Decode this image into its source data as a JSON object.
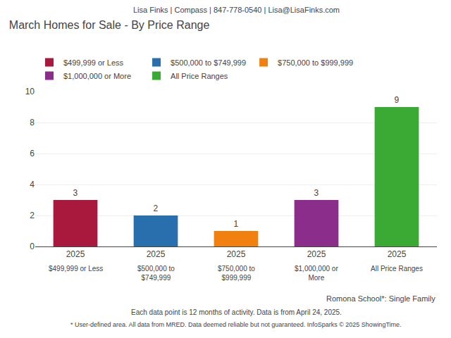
{
  "chart_data": {
    "type": "bar",
    "title": "March Homes for Sale - By Price Range",
    "header": "Lisa Finks | Compass | 847-778-0540 | Lisa@LisaFinks.com",
    "footnotes": [
      "Romona School*: Single Family",
      "Each data point is 12 months of activity. Data is from April 24, 2025.",
      "* User-defined area. All data from MRED. Data deemed reliable but not guaranteed. InfoSparks © 2025 ShowingTime."
    ],
    "categories": [
      "2025",
      "2025",
      "2025",
      "2025",
      "2025"
    ],
    "group_labels": [
      "$499,999 or Less",
      "$500,000 to\n$749,999",
      "$750,000 to\n$999,999",
      "$1,000,000 or\nMore",
      "All Price Ranges"
    ],
    "series": [
      {
        "name": "$499,999 or Less",
        "color": "#a8193d",
        "values": [
          3,
          null,
          null,
          null,
          null
        ]
      },
      {
        "name": "$500,000 to $749,999",
        "color": "#2a6fad",
        "values": [
          null,
          2,
          null,
          null,
          null
        ]
      },
      {
        "name": "$750,000 to $999,999",
        "color": "#f08010",
        "values": [
          null,
          null,
          1,
          null,
          null
        ]
      },
      {
        "name": "$1,000,000 or More",
        "color": "#8b2d8b",
        "values": [
          null,
          null,
          null,
          3,
          null
        ]
      },
      {
        "name": "All Price Ranges",
        "color": "#3aaa35",
        "values": [
          null,
          null,
          null,
          null,
          9
        ]
      }
    ],
    "ylim": [
      0,
      10
    ],
    "yticks": [
      0,
      2,
      4,
      6,
      8,
      10
    ],
    "grid": true,
    "data_labels": true,
    "legend": "upper left"
  }
}
